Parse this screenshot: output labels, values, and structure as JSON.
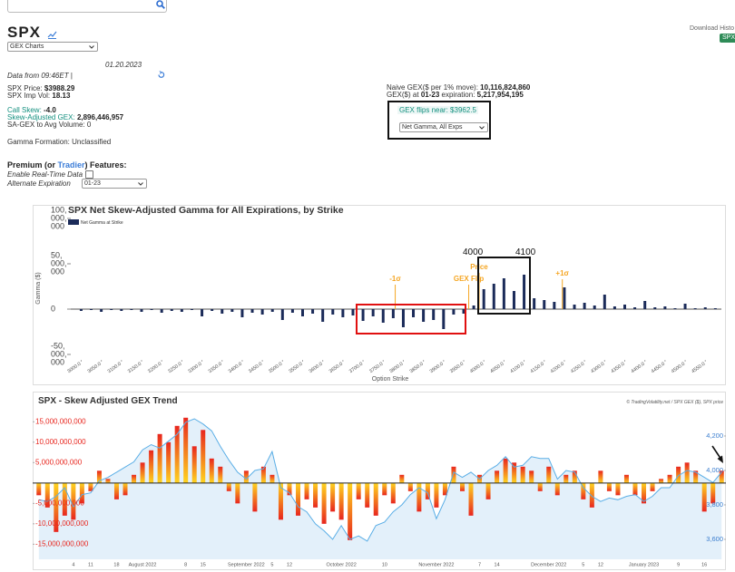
{
  "page": {
    "ticker": "SPX",
    "chart_select": "GEX Charts",
    "date": "01.20.2023",
    "data_from": "Data from 09:46ET |",
    "price_label": "SPX Price:",
    "price": "$3988.29",
    "iv_label": "SPX Imp Vol:",
    "iv": "18.13",
    "call_skew_label": "Call Skew:",
    "call_skew": "-4.0",
    "sa_gex_label": "Skew-Adjusted GEX:",
    "sa_gex": "2,896,446,957",
    "sa_gex_vol": "SA-GEX to Avg Volume: 0",
    "gamma_formation": "Gamma Formation: Unclassified",
    "premium_pre": "Premium (or",
    "premium_link": "Tradier",
    "premium_post": ") Features:",
    "realtime": "Enable Real-Time Data",
    "alt_exp": "Alternate Expiration",
    "alt_exp_value": "01-23",
    "naive_gex_label": "Naive GEX($ per 1% move):",
    "naive_gex": "10,116,824,860",
    "gex_exp_pre": "GEX($) at",
    "gex_exp_date": "01-23",
    "gex_exp_post": "expiration:",
    "gex_exp": "5,217,954,195",
    "flip_label": "GEX flips near:",
    "flip": "$3962.5",
    "gamma_select": "Net Gamma, All Exps",
    "download": "Download Histo",
    "download_btn": "SPX"
  },
  "chart_data": [
    {
      "type": "bar",
      "title": "SPX Net Skew-Adjusted Gamma for All Expirations, by Strike",
      "x_label": "Option Strike",
      "y_label": "Gamma ($)",
      "x": [
        3000,
        3025,
        3050,
        3075,
        3100,
        3125,
        3150,
        3175,
        3200,
        3225,
        3250,
        3275,
        3300,
        3325,
        3350,
        3375,
        3400,
        3425,
        3450,
        3475,
        3500,
        3525,
        3550,
        3575,
        3600,
        3625,
        3650,
        3675,
        3700,
        3725,
        3750,
        3775,
        3800,
        3825,
        3850,
        3875,
        3900,
        3925,
        3950,
        3975,
        4000,
        4025,
        4050,
        4075,
        4100,
        4125,
        4150,
        4175,
        4200,
        4225,
        4250,
        4275,
        4300,
        4325,
        4350,
        4375,
        4400,
        4425,
        4450,
        4475,
        4500,
        4525,
        4550,
        4575
      ],
      "series": [
        {
          "name": "Net Gamma at Strike",
          "color": "#1b2b59",
          "values": [
            -2000000.0,
            -1000000.0,
            -3000000.0,
            -1000000.0,
            -2000000.0,
            -1000000.0,
            -3000000.0,
            -1000000.0,
            -4000000.0,
            -2000000.0,
            -3000000.0,
            -1000000.0,
            -8000000.0,
            -2000000.0,
            -5000000.0,
            -3000000.0,
            -9000000.0,
            -4000000.0,
            -6000000.0,
            -3000000.0,
            -12000000.0,
            -4000000.0,
            -8000000.0,
            -5000000.0,
            -14000000.0,
            -6000000.0,
            -9000000.0,
            -7000000.0,
            -13000000.0,
            -8000000.0,
            -15000000.0,
            -10000000.0,
            -20000000.0,
            -9000000.0,
            -14000000.0,
            -12000000.0,
            -22000000.0,
            -6000000.0,
            -5000000.0,
            4000000.0,
            22000000.0,
            28000000.0,
            34000000.0,
            20000000.0,
            38000000.0,
            12000000.0,
            10000000.0,
            8000000.0,
            24000000.0,
            5000000.0,
            7000000.0,
            4000000.0,
            16000000.0,
            3000000.0,
            5000000.0,
            2000000.0,
            9000000.0,
            2000000.0,
            3000000.0,
            1000000.0,
            6000000.0,
            1000000.0,
            2000000.0,
            1000000.0
          ]
        }
      ],
      "xlim": [
        2990,
        4590
      ],
      "xticks": [
        {
          "value": 3000,
          "label": "3000.0"
        },
        {
          "value": 3050,
          "label": "3050.0"
        },
        {
          "value": 3100,
          "label": "3100.0"
        },
        {
          "value": 3150,
          "label": "3150.0"
        },
        {
          "value": 3200,
          "label": "3200.0"
        },
        {
          "value": 3250,
          "label": "3250.0"
        },
        {
          "value": 3300,
          "label": "3300.0"
        },
        {
          "value": 3350,
          "label": "3350.0"
        },
        {
          "value": 3400,
          "label": "3400.0"
        },
        {
          "value": 3450,
          "label": "3450.0"
        },
        {
          "value": 3500,
          "label": "3500.0"
        },
        {
          "value": 3550,
          "label": "3550.0"
        },
        {
          "value": 3600,
          "label": "3600.0"
        },
        {
          "value": 3650,
          "label": "3650.0"
        },
        {
          "value": 3700,
          "label": "3700.0"
        },
        {
          "value": 3750,
          "label": "3750.0"
        },
        {
          "value": 3800,
          "label": "3800.0"
        },
        {
          "value": 3850,
          "label": "3850.0"
        },
        {
          "value": 3900,
          "label": "3900.0"
        },
        {
          "value": 3950,
          "label": "3950.0"
        },
        {
          "value": 4000,
          "label": "4000.0"
        },
        {
          "value": 4050,
          "label": "4050.0"
        },
        {
          "value": 4100,
          "label": "4100.0"
        },
        {
          "value": 4150,
          "label": "4150.0"
        },
        {
          "value": 4200,
          "label": "4200.0"
        },
        {
          "value": 4250,
          "label": "4250.0"
        },
        {
          "value": 4300,
          "label": "4300.0"
        },
        {
          "value": 4350,
          "label": "4350.0"
        },
        {
          "value": 4400,
          "label": "4400.0"
        },
        {
          "value": 4450,
          "label": "4450.0"
        },
        {
          "value": 4500,
          "label": "4500.0"
        },
        {
          "value": 4550,
          "label": "4550.0"
        }
      ],
      "ylim": [
        -56000000,
        103000000
      ],
      "yticks": [
        {
          "value": 100000000,
          "label": "100,000,000"
        },
        {
          "value": 50000000,
          "label": "50,000,000"
        },
        0,
        {
          "value": -50000000,
          "label": "-50,000,000"
        }
      ],
      "annotation_color": "#f5a623",
      "annotations": [
        {
          "text": "-1σ",
          "x": 3780
        },
        {
          "text": "GEX Flip",
          "x": 3962.5
        },
        {
          "text": "Price",
          "x": 3988.29
        },
        {
          "text": "+1σ",
          "x": 4195
        }
      ],
      "box_labels": [
        "4000",
        "4100"
      ]
    },
    {
      "type": "bar_line",
      "title": "SPX - Skew Adjusted GEX Trend",
      "credit": "© TradingVolatility.net / SPX GEX ($), SPX price",
      "categories": [
        null,
        null,
        null,
        null,
        "4",
        null,
        "11",
        null,
        null,
        "18",
        null,
        null,
        "August 2022",
        null,
        null,
        null,
        null,
        "8",
        null,
        "15",
        null,
        null,
        null,
        null,
        "September 2022",
        null,
        null,
        "5",
        null,
        "12",
        null,
        null,
        null,
        null,
        null,
        "October 2022",
        null,
        null,
        null,
        null,
        "10",
        null,
        null,
        null,
        null,
        null,
        "November 2022",
        null,
        null,
        null,
        null,
        "7",
        null,
        "14",
        null,
        null,
        null,
        null,
        null,
        "December 2022",
        null,
        null,
        null,
        "5",
        null,
        "12",
        null,
        null,
        null,
        null,
        "January 2023",
        null,
        null,
        null,
        "9",
        null,
        null,
        "16",
        null,
        null
      ],
      "series": [
        {
          "colors": [
            "#ffd51f",
            "#e8261e"
          ],
          "values": [
            -3000000000.0,
            -6000000000.0,
            -12000000000.0,
            -8000000000.0,
            -9000000000.0,
            -5000000000.0,
            -2000000000.0,
            3000000000.0,
            1000000000.0,
            -4000000000.0,
            -3000000000.0,
            2000000000.0,
            5000000000.0,
            8000000000.0,
            12000000000.0,
            10000000000.0,
            14000000000.0,
            16000000000.0,
            9000000000.0,
            13000000000.0,
            6000000000.0,
            4000000000.0,
            -2000000000.0,
            -5000000000.0,
            3000000000.0,
            -7000000000.0,
            4000000000.0,
            2000000000.0,
            -9000000000.0,
            -3000000000.0,
            -8000000000.0,
            -4000000000.0,
            -6000000000.0,
            -10000000000.0,
            -7000000000.0,
            -9000000000.0,
            -14000000000.0,
            -4000000000.0,
            -6000000000.0,
            -8000000000.0,
            -3000000000.0,
            -5000000000.0,
            2000000000.0,
            -2000000000.0,
            -7000000000.0,
            -4000000000.0,
            -6000000000.0,
            -3000000000.0,
            4000000000.0,
            -2000000000.0,
            -8000000000.0,
            2000000000.0,
            -4000000000.0,
            3000000000.0,
            6000000000.0,
            5000000000.0,
            4000000000.0,
            3000000000.0,
            -2000000000.0,
            4000000000.0,
            -3000000000.0,
            2000000000.0,
            3000000000.0,
            -4000000000.0,
            -6000000000.0,
            3000000000.0,
            -2000000000.0,
            -3000000000.0,
            2000000000.0,
            -3000000000.0,
            -5000000000.0,
            -2000000000.0,
            1000000000.0,
            2000000000.0,
            4000000000.0,
            5000000000.0,
            3000000000.0,
            -7000000000.0,
            -5000000000.0,
            3000000000.0
          ]
        },
        {
          "axis": "y2",
          "color": "#5aaee6",
          "fill": "#e3f0fa",
          "values": [
            3830,
            3820,
            3850,
            3900,
            3790,
            3860,
            3870,
            3940,
            3960,
            3990,
            4020,
            4050,
            4120,
            4150,
            4130,
            4170,
            4210,
            4280,
            4300,
            4270,
            4230,
            4140,
            4060,
            3990,
            3950,
            4000,
            4010,
            4110,
            3900,
            3870,
            3790,
            3760,
            3690,
            3650,
            3600,
            3680,
            3600,
            3620,
            3590,
            3680,
            3700,
            3760,
            3800,
            3860,
            3900,
            3870,
            3720,
            3830,
            3990,
            3960,
            3990,
            3950,
            4000,
            4030,
            4080,
            4020,
            4030,
            4080,
            4070,
            4070,
            3950,
            4000,
            3990,
            3900,
            3850,
            3820,
            3840,
            3830,
            3850,
            3860,
            3820,
            3850,
            3900,
            3900,
            3970,
            4000,
            3990,
            3960,
            3930,
            3990
          ]
        }
      ],
      "ylim": [
        -18700000000,
        18400000000
      ],
      "yticks": [
        {
          "value": 15000000000,
          "label": "15,000,000,000"
        },
        {
          "value": 10000000000,
          "label": "10,000,000,000"
        },
        {
          "value": 5000000000,
          "label": "5,000,000,000"
        },
        {
          "value": -5000000000,
          "label": "-5,000,000,000"
        },
        {
          "value": -10000000000,
          "label": "-10,000,000,000"
        },
        {
          "value": -15000000000,
          "label": "-15,000,000,000"
        }
      ],
      "y2lim": [
        3484,
        4363
      ],
      "y2ticks": [
        {
          "value": 4200,
          "label": "4,200"
        },
        {
          "value": 4000,
          "label": "4,000"
        },
        {
          "value": 3800,
          "label": "3,800"
        },
        {
          "value": 3600,
          "label": "3,600"
        }
      ]
    }
  ]
}
